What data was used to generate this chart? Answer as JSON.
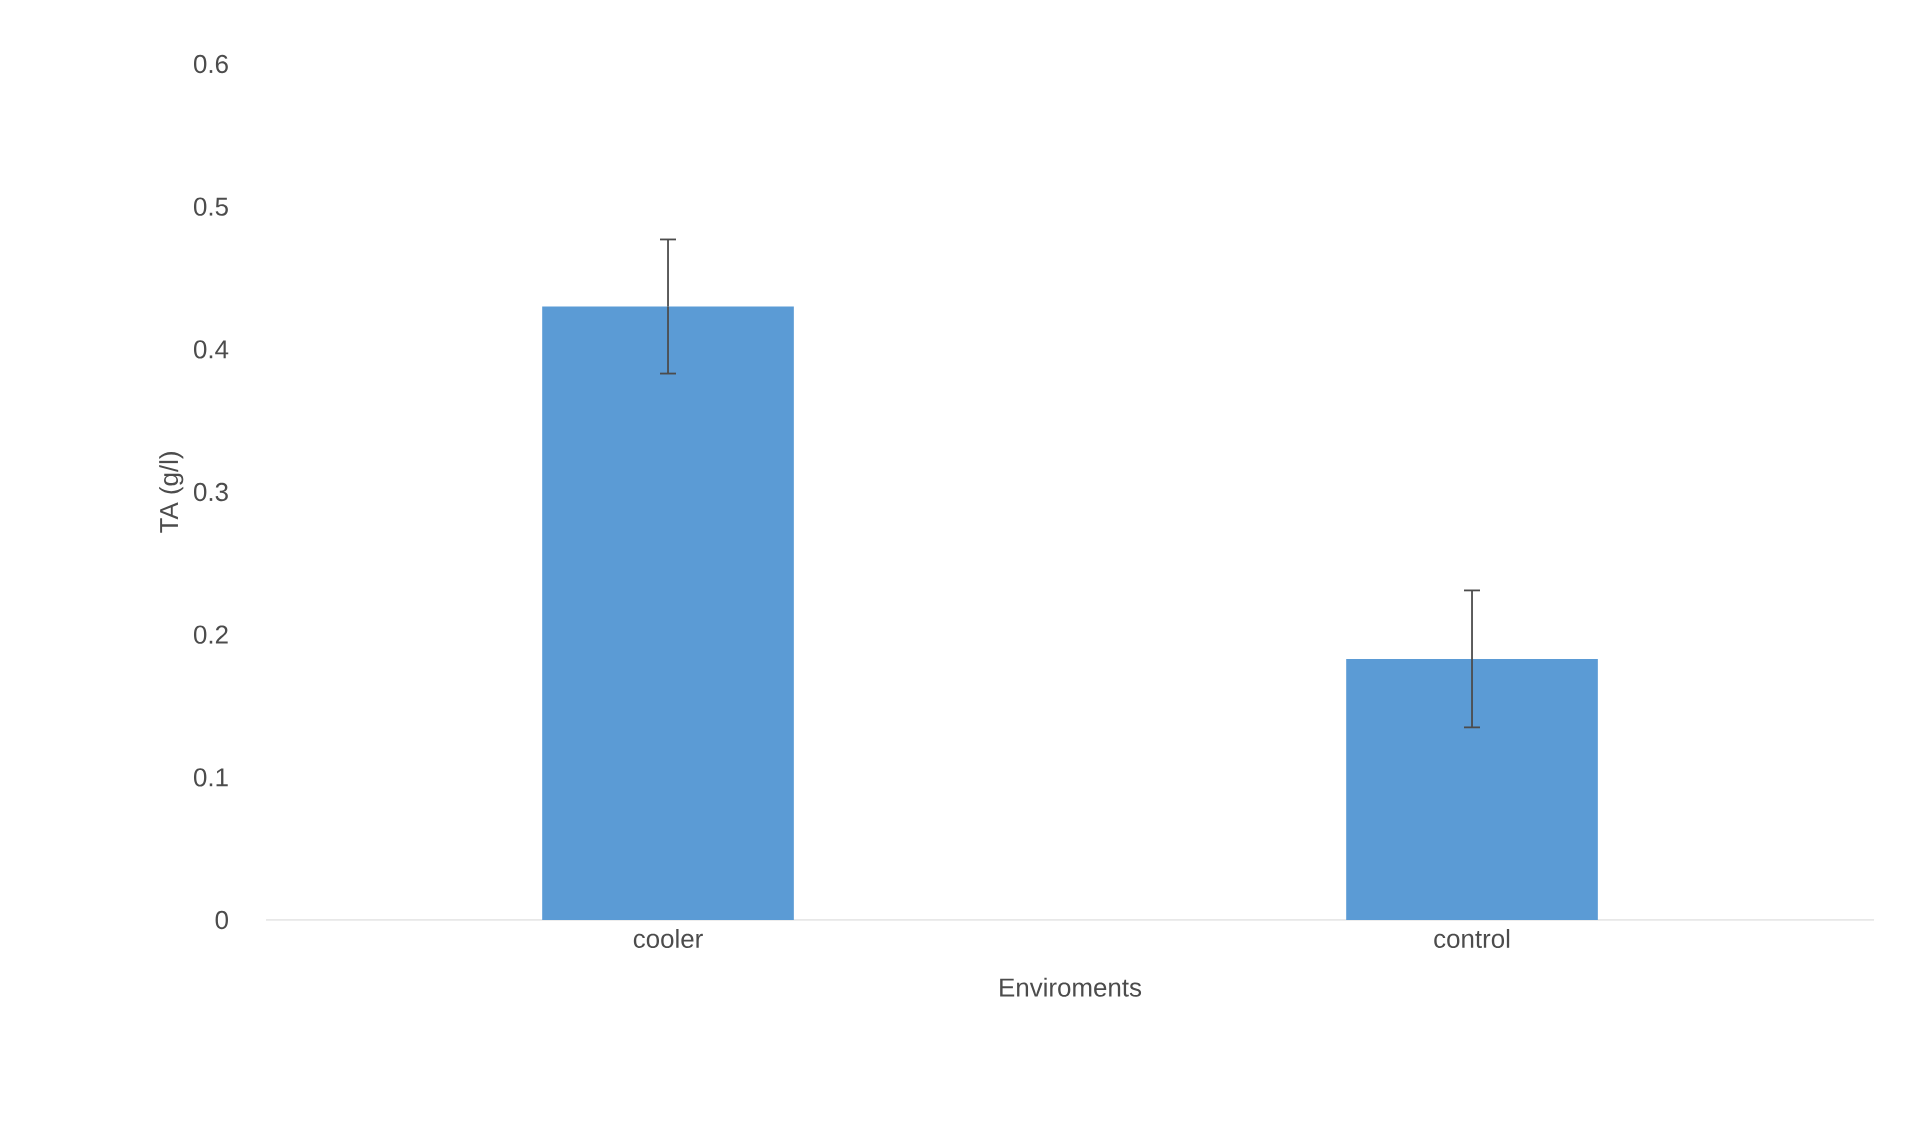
{
  "chart_data": {
    "type": "bar",
    "xlabel": "Enviroments",
    "ylabel": "TA (g/l)",
    "categories": [
      "cooler",
      "control"
    ],
    "values": [
      0.43,
      0.183
    ],
    "errors": [
      0.047,
      0.048
    ],
    "color": "#5b9bd5",
    "ylim": [
      0,
      0.6
    ],
    "yticks": [
      0,
      0.1,
      0.2,
      0.3,
      0.4,
      0.5,
      0.6
    ]
  }
}
